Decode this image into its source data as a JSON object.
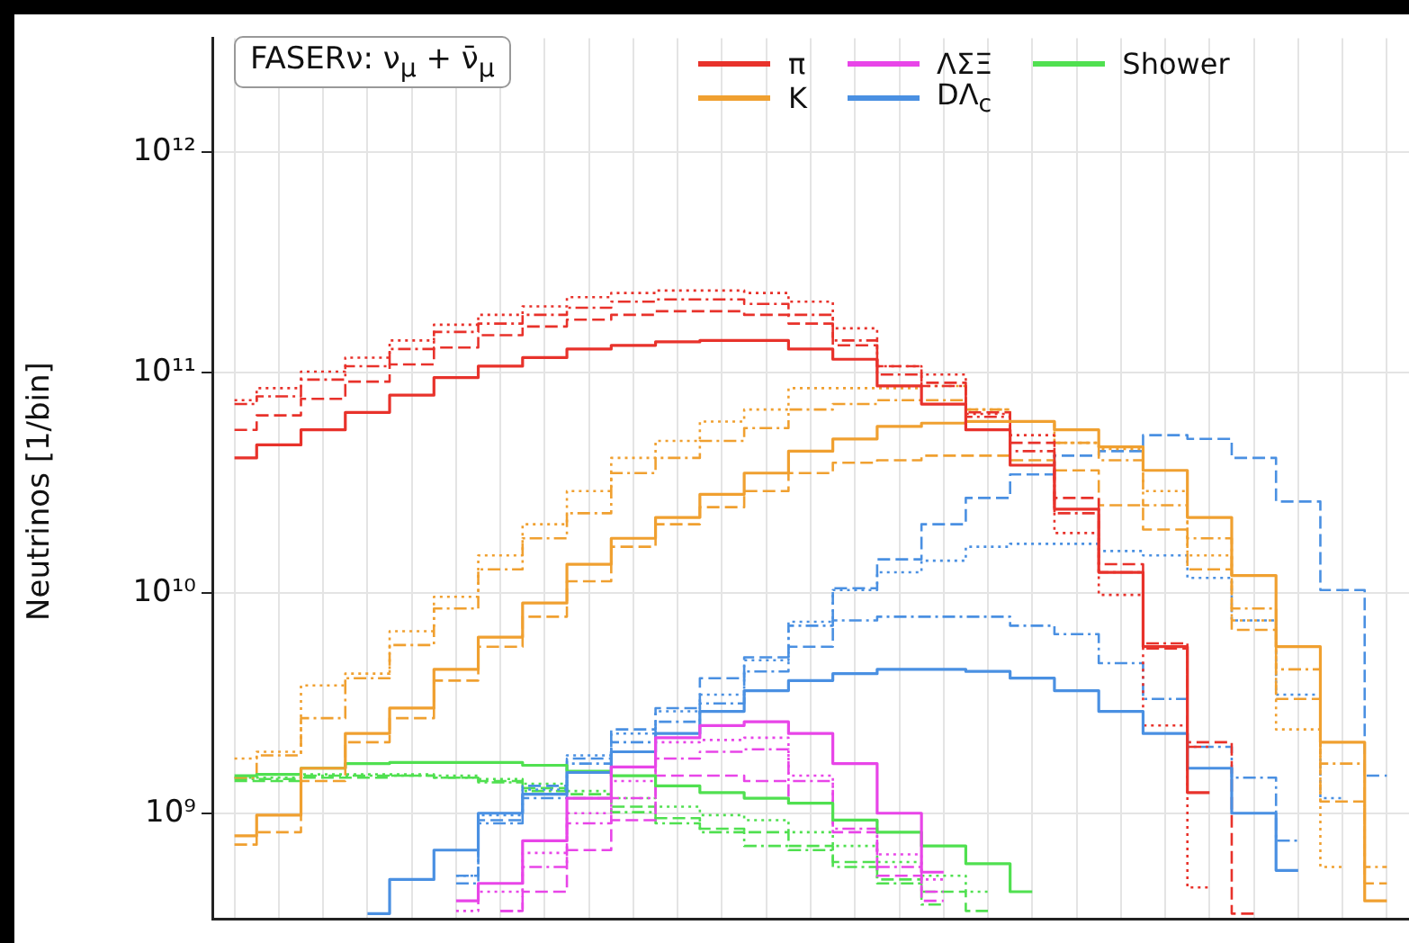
{
  "chart_data": {
    "type": "step",
    "title": "FASERν: ν$_{μ}$ + ν̄$_{μ}$",
    "ylabel": "Neutrinos [1/bin]",
    "legend": "top",
    "grid": true,
    "log": true,
    "tick_labels": "y",
    "categories": [
      null,
      null,
      null,
      null,
      null,
      null,
      null,
      null,
      null,
      null,
      null,
      null,
      null,
      null,
      null,
      null,
      null,
      null,
      null,
      null,
      null,
      null,
      null,
      null,
      null,
      null,
      null
    ],
    "ylim": [
      330000000.0,
      3300000000000.0
    ],
    "yticks": [
      {
        "value": 1000000000.0,
        "label": "10⁹"
      },
      {
        "value": 10000000000.0,
        "label": "10¹⁰"
      },
      {
        "value": 100000000000.0,
        "label": "10¹¹"
      },
      {
        "value": 1000000000000.0,
        "label": "10¹²"
      }
    ],
    "series": [
      {
        "name": "π",
        "color": "#e8322b",
        "line_style": "solid",
        "values": [
          41000000000.0,
          47000000000.0,
          55000000000.0,
          66000000000.0,
          79000000000.0,
          95000000000.0,
          107000000000.0,
          117000000000.0,
          128000000000.0,
          133000000000.0,
          138000000000.0,
          140000000000.0,
          140000000000.0,
          128000000000.0,
          115000000000.0,
          87000000000.0,
          72000000000.0,
          55000000000.0,
          38000000000.0,
          24000000000.0,
          12400000000.0,
          5700000000.0,
          1240000000.0,
          null,
          null,
          null,
          null
        ]
      },
      {
        "name": "K",
        "color": "#f0a030",
        "line_style": "solid",
        "values": [
          790000000.0,
          980000000.0,
          1600000000.0,
          2300000000.0,
          3000000000.0,
          4500000000.0,
          6300000000.0,
          9000000000.0,
          13500000000.0,
          17700000000.0,
          22000000000.0,
          28000000000.0,
          35000000000.0,
          44000000000.0,
          50000000000.0,
          57000000000.0,
          59000000000.0,
          60000000000.0,
          60000000000.0,
          55000000000.0,
          46000000000.0,
          36000000000.0,
          22000000000.0,
          12000000000.0,
          5700000000.0,
          2100000000.0,
          400000000.0
        ]
      },
      {
        "name": "ΛΣΞ",
        "color": "#e845e8",
        "line_style": "solid",
        "values": [
          null,
          null,
          null,
          null,
          null,
          400000000.0,
          480000000.0,
          750000000.0,
          1170000000.0,
          1620000000.0,
          2200000000.0,
          2500000000.0,
          2600000000.0,
          2300000000.0,
          1680000000.0,
          1000000000.0,
          540000000.0,
          null,
          null,
          null,
          null,
          null,
          null,
          null,
          null,
          null,
          null
        ]
      },
      {
        "name": "DΛ$_{c}$",
        "color": "#4a90e2",
        "line_style": "solid",
        "values": [
          null,
          null,
          null,
          350000000.0,
          500000000.0,
          680000000.0,
          1000000000.0,
          1220000000.0,
          1530000000.0,
          1900000000.0,
          2300000000.0,
          2900000000.0,
          3600000000.0,
          4000000000.0,
          4300000000.0,
          4500000000.0,
          4500000000.0,
          4400000000.0,
          4100000000.0,
          3600000000.0,
          2900000000.0,
          2300000000.0,
          1600000000.0,
          1000000000.0,
          550000000.0,
          null,
          null
        ]
      },
      {
        "name": "Shower",
        "color": "#50e050",
        "line_style": "solid",
        "values": [
          1480000000.0,
          1500000000.0,
          1600000000.0,
          1680000000.0,
          1700000000.0,
          1700000000.0,
          1700000000.0,
          1650000000.0,
          1550000000.0,
          1480000000.0,
          1330000000.0,
          1240000000.0,
          1170000000.0,
          1110000000.0,
          930000000.0,
          820000000.0,
          710000000.0,
          590000000.0,
          440000000.0,
          null,
          null,
          null,
          null,
          null,
          null,
          null,
          null
        ]
      },
      {
        "color": "#e8322b",
        "line_style": "dashed",
        "values": [
          55000000000.0,
          64000000000.0,
          76000000000.0,
          91000000000.0,
          109000000000.0,
          130000000000.0,
          148000000000.0,
          162000000000.0,
          174000000000.0,
          183000000000.0,
          190000000000.0,
          190000000000.0,
          183000000000.0,
          167000000000.0,
          133000000000.0,
          107000000000.0,
          90000000000.0,
          66000000000.0,
          48000000000.0,
          27000000000.0,
          13500000000.0,
          5600000000.0,
          2100000000.0,
          350000000.0,
          null,
          null,
          null
        ]
      },
      {
        "color": "#e8322b",
        "line_style": "dotted",
        "values": [
          75000000000.0,
          85000000000.0,
          101000000000.0,
          117000000000.0,
          140000000000.0,
          165000000000.0,
          183000000000.0,
          200000000000.0,
          220000000000.0,
          230000000000.0,
          236000000000.0,
          236000000000.0,
          230000000000.0,
          210000000000.0,
          159000000000.0,
          107000000000.0,
          98000000000.0,
          65000000000.0,
          52000000000.0,
          18700000000.0,
          9800000000.0,
          2500000000.0,
          460000000.0,
          null,
          null,
          null,
          null
        ]
      },
      {
        "color": "#e8322b",
        "line_style": "dashdot",
        "values": [
          72000000000.0,
          78000000000.0,
          93000000000.0,
          107000000000.0,
          128000000000.0,
          153000000000.0,
          167000000000.0,
          183000000000.0,
          197000000000.0,
          210000000000.0,
          215000000000.0,
          215000000000.0,
          205000000000.0,
          183000000000.0,
          140000000000.0,
          98000000000.0,
          87000000000.0,
          63000000000.0,
          44000000000.0,
          23000000000.0,
          12400000000.0,
          5900000000.0,
          2000000000.0,
          null,
          null,
          null,
          null
        ]
      },
      {
        "color": "#f0a030",
        "line_style": "dashed",
        "values": [
          720000000.0,
          820000000.0,
          1400000000.0,
          2100000000.0,
          2700000000.0,
          4000000000.0,
          5700000000.0,
          7800000000.0,
          11300000000.0,
          16200000000.0,
          20500000000.0,
          24500000000.0,
          29000000000.0,
          35000000000.0,
          39000000000.0,
          40000000000.0,
          42000000000.0,
          42000000000.0,
          40000000000.0,
          36000000000.0,
          25000000000.0,
          19400000000.0,
          12800000000.0,
          6800000000.0,
          3300000000.0,
          1130000000.0,
          480000000.0
        ]
      },
      {
        "color": "#f0a030",
        "line_style": "dotted",
        "values": [
          1770000000.0,
          1900000000.0,
          3800000000.0,
          4300000000.0,
          6700000000.0,
          9600000000.0,
          14800000000.0,
          20500000000.0,
          29000000000.0,
          41000000000.0,
          49000000000.0,
          60000000000.0,
          68000000000.0,
          85000000000.0,
          85000000000.0,
          85000000000.0,
          87000000000.0,
          68000000000.0,
          60000000000.0,
          48000000000.0,
          45000000000.0,
          29000000000.0,
          14800000000.0,
          7500000000.0,
          2400000000.0,
          570000000.0,
          null
        ]
      },
      {
        "color": "#f0a030",
        "line_style": "dashdot",
        "values": [
          1450000000.0,
          1830000000.0,
          2700000000.0,
          4100000000.0,
          5800000000.0,
          8500000000.0,
          12800000000.0,
          17700000000.0,
          23000000000.0,
          35000000000.0,
          41000000000.0,
          49000000000.0,
          56000000000.0,
          68000000000.0,
          72000000000.0,
          75000000000.0,
          75000000000.0,
          68000000000.0,
          60000000000.0,
          48000000000.0,
          40000000000.0,
          25000000000.0,
          17700000000.0,
          8500000000.0,
          4500000000.0,
          1680000000.0,
          570000000.0
        ]
      },
      {
        "color": "#e845e8",
        "line_style": "dashed",
        "values": [
          null,
          null,
          null,
          null,
          null,
          null,
          360000000.0,
          440000000.0,
          680000000.0,
          930000000.0,
          1480000000.0,
          1480000000.0,
          1400000000.0,
          1110000000.0,
          820000000.0,
          520000000.0,
          400000000.0,
          null,
          null,
          null,
          null,
          null,
          null,
          null,
          null,
          null,
          null
        ]
      },
      {
        "color": "#e845e8",
        "line_style": "dotted",
        "values": [
          null,
          null,
          null,
          null,
          null,
          360000000.0,
          440000000.0,
          660000000.0,
          1000000000.0,
          1400000000.0,
          2100000000.0,
          2150000000.0,
          2200000000.0,
          1480000000.0,
          930000000.0,
          650000000.0,
          500000000.0,
          null,
          null,
          null,
          null,
          null,
          null,
          null,
          null,
          null,
          null
        ]
      },
      {
        "color": "#e845e8",
        "line_style": "dashdot",
        "values": [
          null,
          null,
          null,
          null,
          null,
          null,
          360000000.0,
          570000000.0,
          900000000.0,
          1170000000.0,
          1770000000.0,
          1900000000.0,
          1950000000.0,
          1400000000.0,
          850000000.0,
          570000000.0,
          440000000.0,
          null,
          null,
          null,
          null,
          null,
          null,
          null,
          null,
          null,
          null
        ]
      },
      {
        "color": "#4a90e2",
        "line_style": "dashed",
        "values": [
          null,
          null,
          null,
          null,
          null,
          520000000.0,
          930000000.0,
          1330000000.0,
          1770000000.0,
          2400000000.0,
          3000000000.0,
          4100000000.0,
          5100000000.0,
          5700000000.0,
          10500000000.0,
          14200000000.0,
          20500000000.0,
          27000000000.0,
          34500000000.0,
          42000000000.0,
          44000000000.0,
          52000000000.0,
          50000000000.0,
          41000000000.0,
          26000000000.0,
          10300000000.0,
          1480000000.0
        ]
      },
      {
        "color": "#4a90e2",
        "line_style": "dotted",
        "values": [
          null,
          null,
          null,
          null,
          null,
          520000000.0,
          980000000.0,
          1280000000.0,
          1830000000.0,
          2300000000.0,
          2900000000.0,
          3450000000.0,
          4950000000.0,
          7400000000.0,
          10300000000.0,
          12400000000.0,
          14000000000.0,
          16200000000.0,
          16700000000.0,
          16700000000.0,
          15500000000.0,
          14800000000.0,
          11700000000.0,
          7500000000.0,
          3450000000.0,
          1170000000.0,
          null
        ]
      },
      {
        "color": "#4a90e2",
        "line_style": "dashdot",
        "values": [
          null,
          null,
          null,
          null,
          null,
          480000000.0,
          900000000.0,
          1170000000.0,
          1680000000.0,
          2100000000.0,
          2600000000.0,
          3150000000.0,
          4400000000.0,
          7100000000.0,
          7500000000.0,
          7800000000.0,
          7800000000.0,
          7800000000.0,
          7100000000.0,
          6500000000.0,
          4800000000.0,
          3300000000.0,
          2000000000.0,
          1450000000.0,
          750000000.0,
          null,
          null
        ]
      },
      {
        "color": "#50e050",
        "line_style": "dashed",
        "values": [
          1400000000.0,
          1400000000.0,
          1450000000.0,
          1450000000.0,
          1480000000.0,
          1450000000.0,
          1400000000.0,
          1300000000.0,
          1220000000.0,
          1070000000.0,
          950000000.0,
          850000000.0,
          820000000.0,
          710000000.0,
          600000000.0,
          500000000.0,
          440000000.0,
          360000000.0,
          null,
          null,
          null,
          null,
          null,
          null,
          null,
          null,
          null
        ]
      },
      {
        "color": "#50e050",
        "line_style": "dotted",
        "values": [
          1450000000.0,
          1450000000.0,
          1500000000.0,
          1500000000.0,
          1500000000.0,
          1480000000.0,
          1430000000.0,
          1360000000.0,
          1260000000.0,
          1170000000.0,
          1070000000.0,
          980000000.0,
          930000000.0,
          820000000.0,
          710000000.0,
          600000000.0,
          520000000.0,
          440000000.0,
          null,
          null,
          null,
          null,
          null,
          null,
          null,
          null,
          null
        ]
      },
      {
        "color": "#50e050",
        "line_style": "dashdot",
        "values": [
          1430000000.0,
          1430000000.0,
          1480000000.0,
          1480000000.0,
          1480000000.0,
          1450000000.0,
          1380000000.0,
          1260000000.0,
          1170000000.0,
          1010000000.0,
          900000000.0,
          820000000.0,
          710000000.0,
          680000000.0,
          570000000.0,
          480000000.0,
          385000000.0,
          null,
          null,
          null,
          null,
          null,
          null,
          null,
          null,
          null,
          null
        ]
      }
    ]
  }
}
